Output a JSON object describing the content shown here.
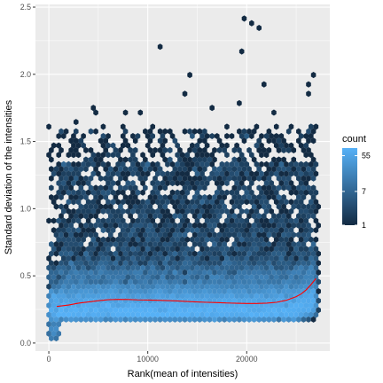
{
  "chart_data": {
    "type": "hexbin",
    "xlabel": "Rank(mean of intensities)",
    "ylabel": "Standard deviation of the intensities",
    "xlim": [
      -1350,
      28400
    ],
    "ylim": [
      -0.06,
      2.52
    ],
    "x_ticks": [
      0,
      10000,
      20000
    ],
    "x_tick_labels": [
      "0",
      "10000",
      "20000"
    ],
    "y_ticks": [
      0.0,
      0.5,
      1.0,
      1.5,
      2.0,
      2.5
    ],
    "y_tick_labels": [
      "0.0",
      "0.5",
      "1.0",
      "1.5",
      "2.0",
      "2.5"
    ],
    "grid": true,
    "legend": {
      "title": "count",
      "position": "right",
      "scale": "log",
      "breaks": [
        1,
        7,
        55
      ],
      "break_labels": [
        "1",
        "7",
        "55"
      ],
      "low_color": "#132b43",
      "high_color": "#56b1f7"
    },
    "n_points": 27000,
    "bulk_band": [
      0.16,
      0.6
    ],
    "outliers": [
      {
        "x": 19600,
        "y": 2.41
      },
      {
        "x": 19600,
        "y": 2.17
      },
      {
        "x": 20400,
        "y": 2.37
      },
      {
        "x": 21200,
        "y": 2.33
      },
      {
        "x": 11400,
        "y": 2.21
      },
      {
        "x": 14400,
        "y": 2.01
      },
      {
        "x": 13600,
        "y": 1.85
      },
      {
        "x": 21800,
        "y": 1.92
      },
      {
        "x": 26800,
        "y": 2.0
      },
      {
        "x": 26400,
        "y": 1.91
      },
      {
        "x": 26000,
        "y": 1.85
      },
      {
        "x": 4400,
        "y": 1.76
      },
      {
        "x": 4800,
        "y": 1.72
      },
      {
        "x": 2800,
        "y": 1.66
      },
      {
        "x": 7600,
        "y": 1.73
      },
      {
        "x": 9200,
        "y": 1.7
      },
      {
        "x": 16400,
        "y": 1.75
      },
      {
        "x": 19000,
        "y": 1.78
      },
      {
        "x": 22800,
        "y": 1.71
      },
      {
        "x": 24400,
        "y": 1.62
      },
      {
        "x": 10400,
        "y": 1.62
      },
      {
        "x": 12400,
        "y": 1.58
      }
    ],
    "trend": {
      "color": "#ff0000",
      "x": [
        800,
        2000,
        3000,
        4000,
        5000,
        6000,
        7000,
        8000,
        9000,
        10000,
        11000,
        12000,
        13000,
        14000,
        15000,
        16000,
        17000,
        18000,
        19000,
        20000,
        21000,
        22000,
        23000,
        24000,
        25000,
        25500,
        26000,
        26500,
        27000
      ],
      "y": [
        0.272,
        0.283,
        0.297,
        0.306,
        0.315,
        0.322,
        0.325,
        0.324,
        0.321,
        0.32,
        0.318,
        0.316,
        0.313,
        0.309,
        0.306,
        0.303,
        0.301,
        0.298,
        0.296,
        0.294,
        0.294,
        0.297,
        0.303,
        0.318,
        0.345,
        0.365,
        0.395,
        0.435,
        0.48
      ]
    }
  }
}
